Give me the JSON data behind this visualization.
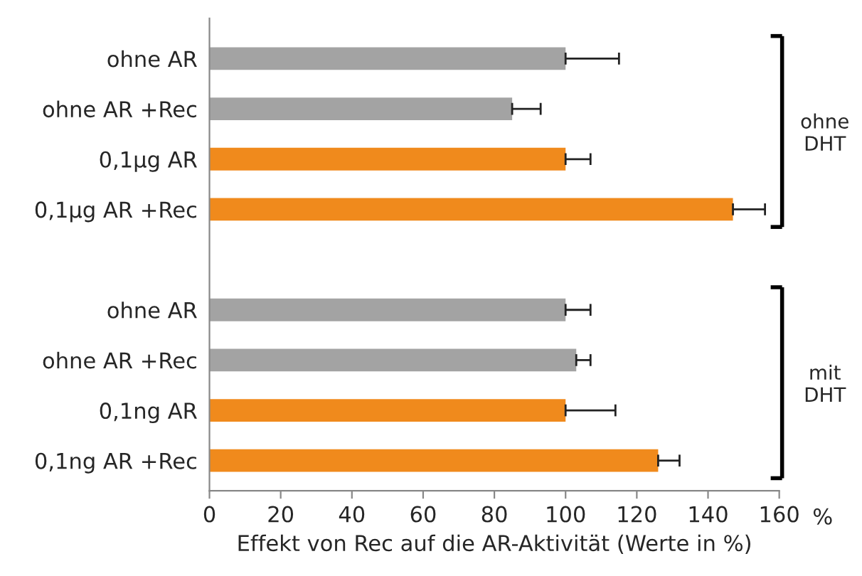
{
  "chart_data": {
    "type": "bar",
    "orientation": "horizontal",
    "xlabel": "Effekt von Rec auf die AR-Aktivität (Werte in %)",
    "categories": [
      "ohne AR",
      "ohne AR +Rec",
      "0,1µg AR",
      "0,1µg AR +Rec",
      null,
      "ohne AR",
      "ohne AR +Rec",
      "0,1ng AR",
      "0,1ng AR +Rec"
    ],
    "values": [
      100,
      85,
      100,
      147,
      null,
      100,
      103,
      100,
      126
    ],
    "errors": [
      15,
      8,
      7,
      9,
      null,
      7,
      4,
      14,
      6
    ],
    "colors": [
      "#a3a3a3",
      "#a3a3a3",
      "#f08a1c",
      "#f08a1c",
      null,
      "#a3a3a3",
      "#a3a3a3",
      "#f08a1c",
      "#f08a1c"
    ],
    "xlim": [
      0,
      160
    ],
    "xticks": [
      0,
      20,
      40,
      60,
      80,
      100,
      120,
      140,
      160
    ],
    "annotations": [
      "ohne\nDHT",
      "mit\nDHT",
      "%"
    ],
    "grid": false,
    "legend": false
  }
}
